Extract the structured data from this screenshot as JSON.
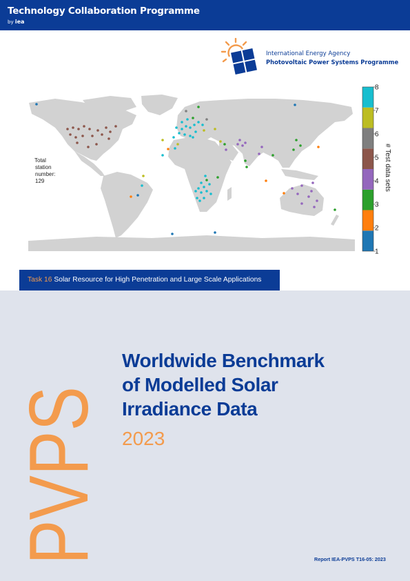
{
  "header": {
    "title": "Technology Collaboration Programme",
    "by_prefix": "by",
    "by_brand": "iea"
  },
  "logo": {
    "org": "International Energy Agency",
    "programme": "Photovoltaic Power Systems Programme"
  },
  "map": {
    "total_label": [
      "Total",
      "station",
      "number:",
      "129"
    ],
    "colorbar_label": "# Test data sets",
    "colorbar_ticks": [
      "1",
      "2",
      "3",
      "4",
      "5",
      "6",
      "7",
      "8"
    ],
    "colorbar_colors": [
      "#1f77b4",
      "#ff7f0e",
      "#2ca02c",
      "#9467bd",
      "#8c564b",
      "#7f7f7f",
      "#bcbd22",
      "#17becf"
    ]
  },
  "task": {
    "number": "Task 16",
    "title": "Solar Resource for High Penetration and Large Scale Applications"
  },
  "cover": {
    "vertical_text": "PVPS",
    "title_lines": [
      "Worldwide Benchmark",
      "of Modelled Solar",
      "Irradiance Data"
    ],
    "year": "2023",
    "report_id": "Report IEA-PVPS T16-05: 2023"
  },
  "colors": {
    "navy": "#0b3c96",
    "orange": "#f39b4d",
    "lower_bg": "#dfe3ec",
    "land": "#d2d2d2",
    "ocean": "#ffffff"
  }
}
